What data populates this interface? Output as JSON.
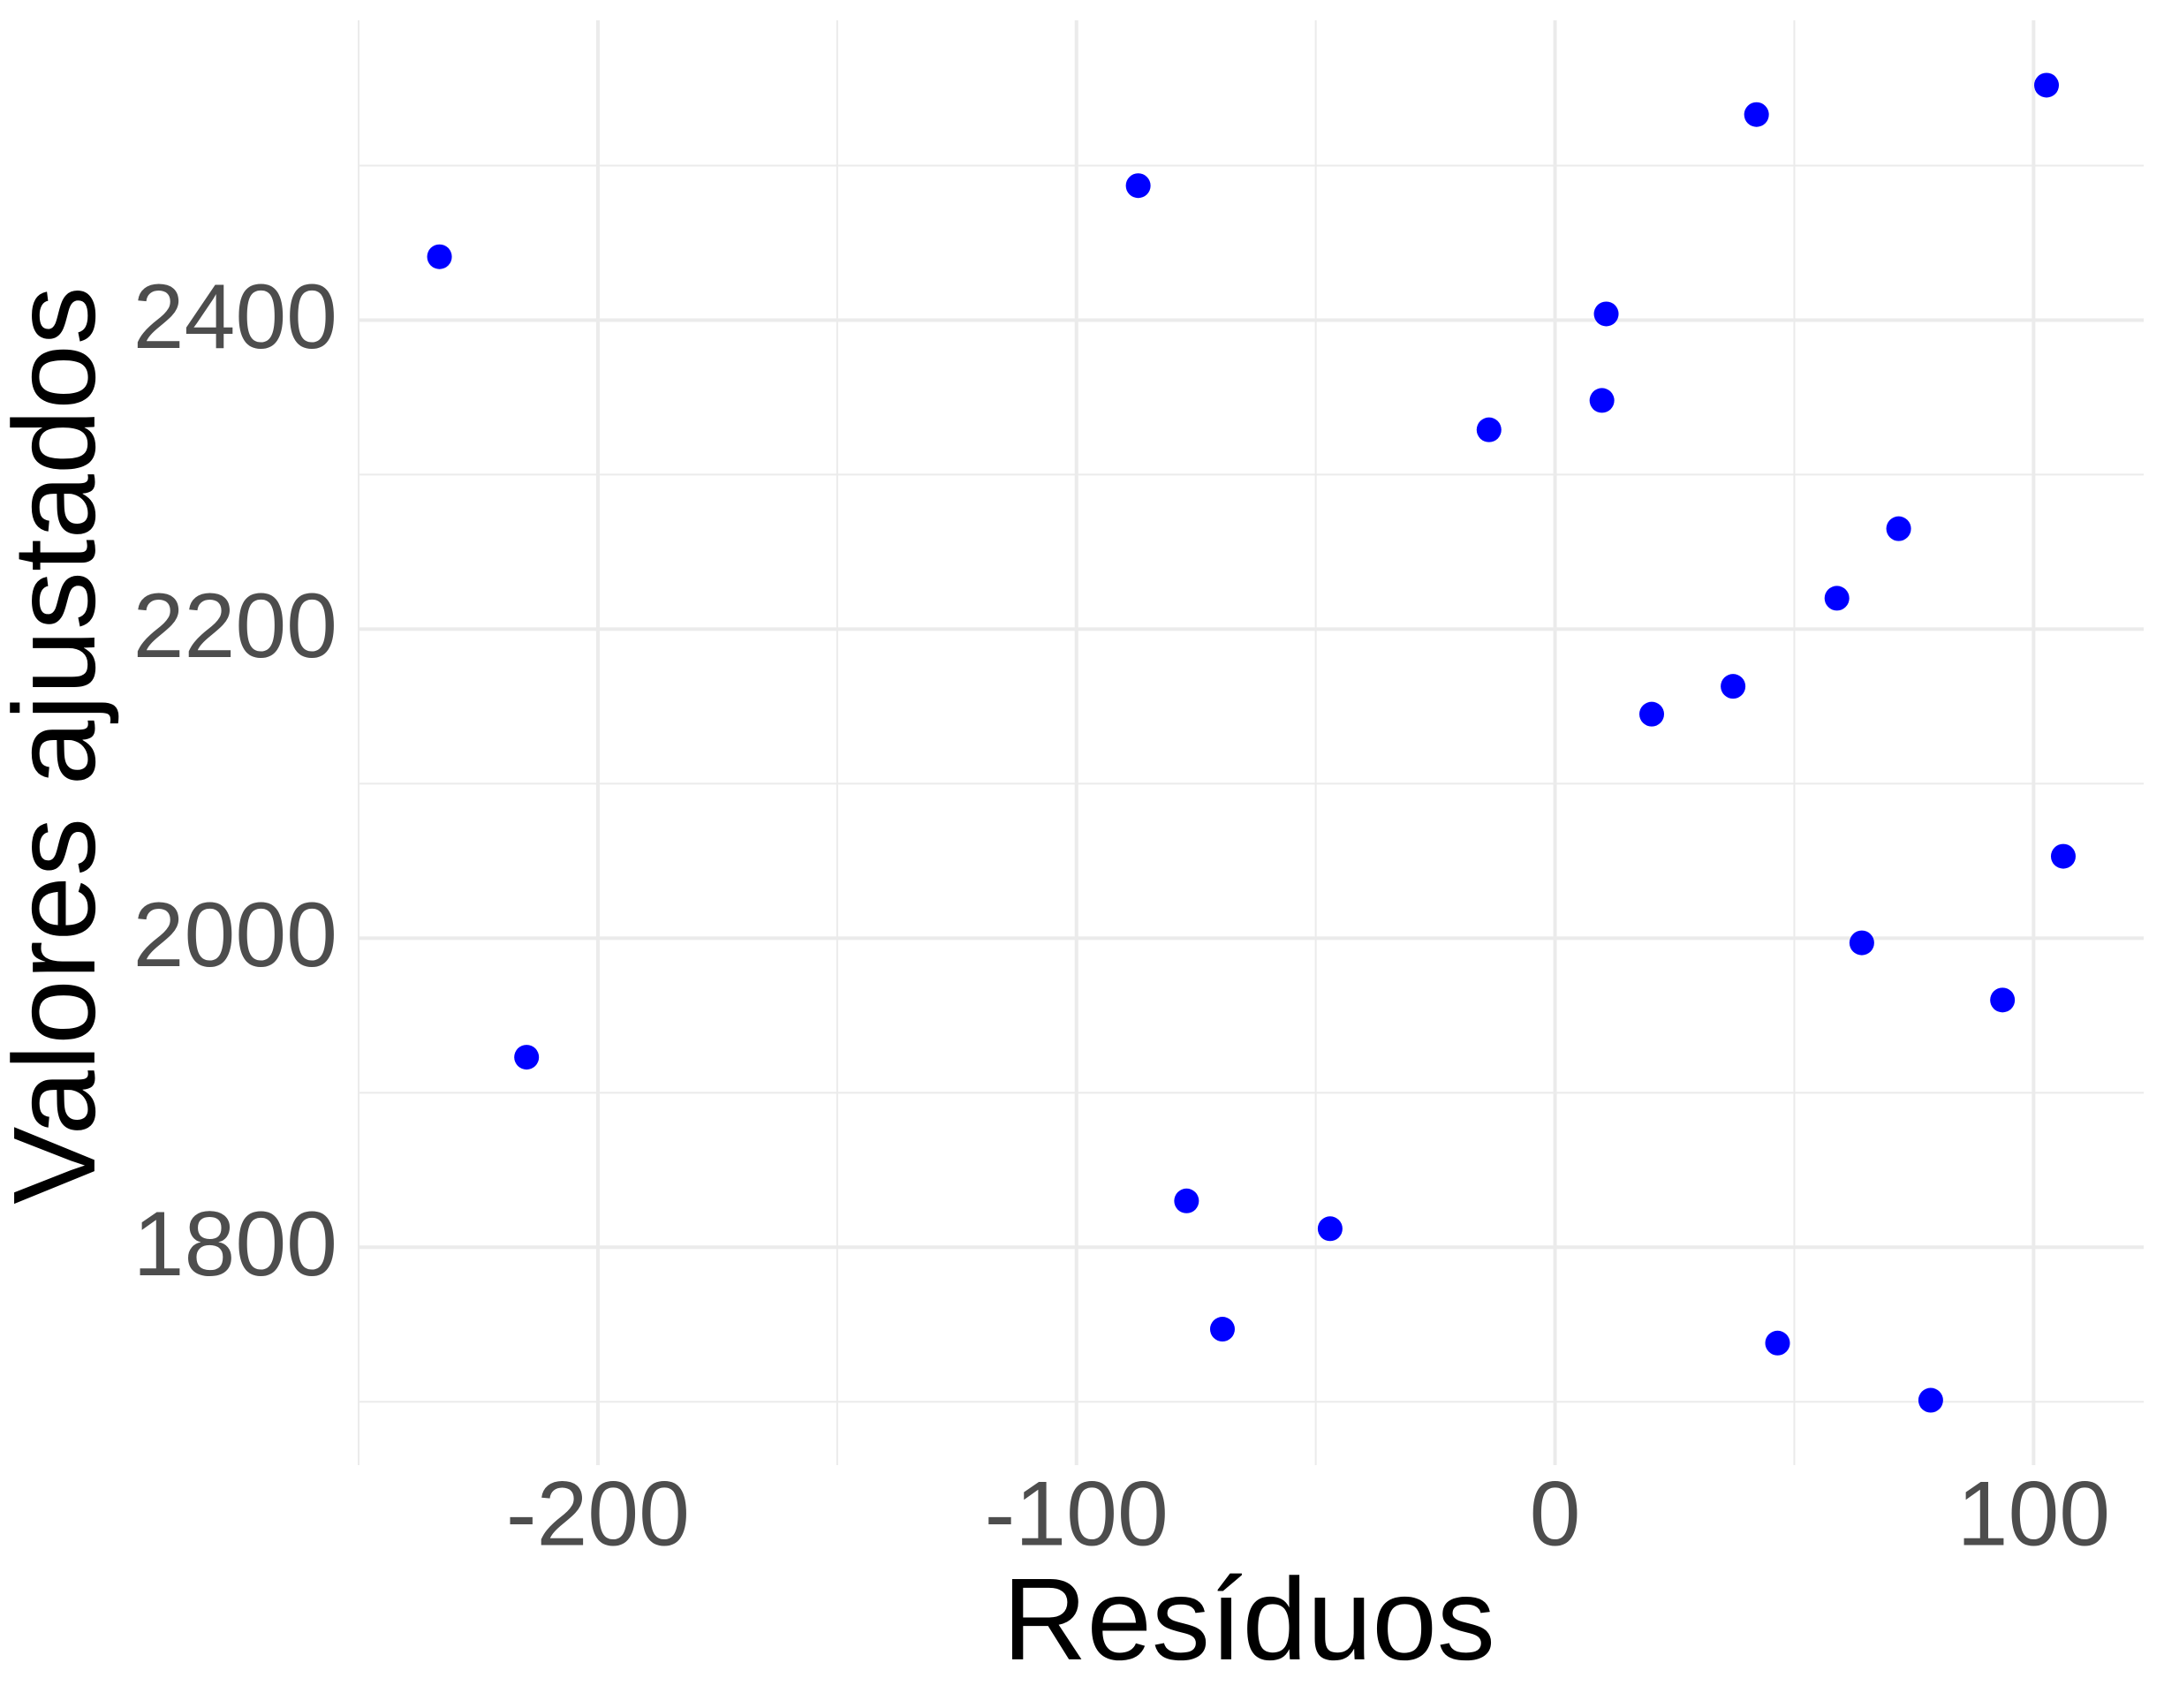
{
  "chart_data": {
    "type": "scatter",
    "xlabel": "Resíduos",
    "ylabel": "Valores ajustados",
    "color": "#0000ff",
    "x": [
      -233.1,
      -214.9,
      -87.1,
      -77.0,
      -69.5,
      -47.0,
      -13.8,
      9.8,
      10.7,
      20.2,
      37.2,
      42.1,
      46.5,
      58.9,
      64.1,
      71.8,
      78.5,
      93.5,
      102.7,
      106.2
    ],
    "values": [
      2441,
      1923,
      2487,
      1830,
      1747,
      1812,
      2329,
      2348,
      2404,
      2145,
      2163,
      2533,
      1738,
      2220,
      1997,
      2265,
      1701,
      1960,
      2552,
      2053
    ],
    "xlim": [
      -250,
      123
    ],
    "ylim": [
      1659,
      2594
    ],
    "xticks": [
      -200,
      -100,
      0,
      100
    ],
    "yticks": [
      1800,
      2000,
      2200,
      2400
    ],
    "grid": true
  }
}
